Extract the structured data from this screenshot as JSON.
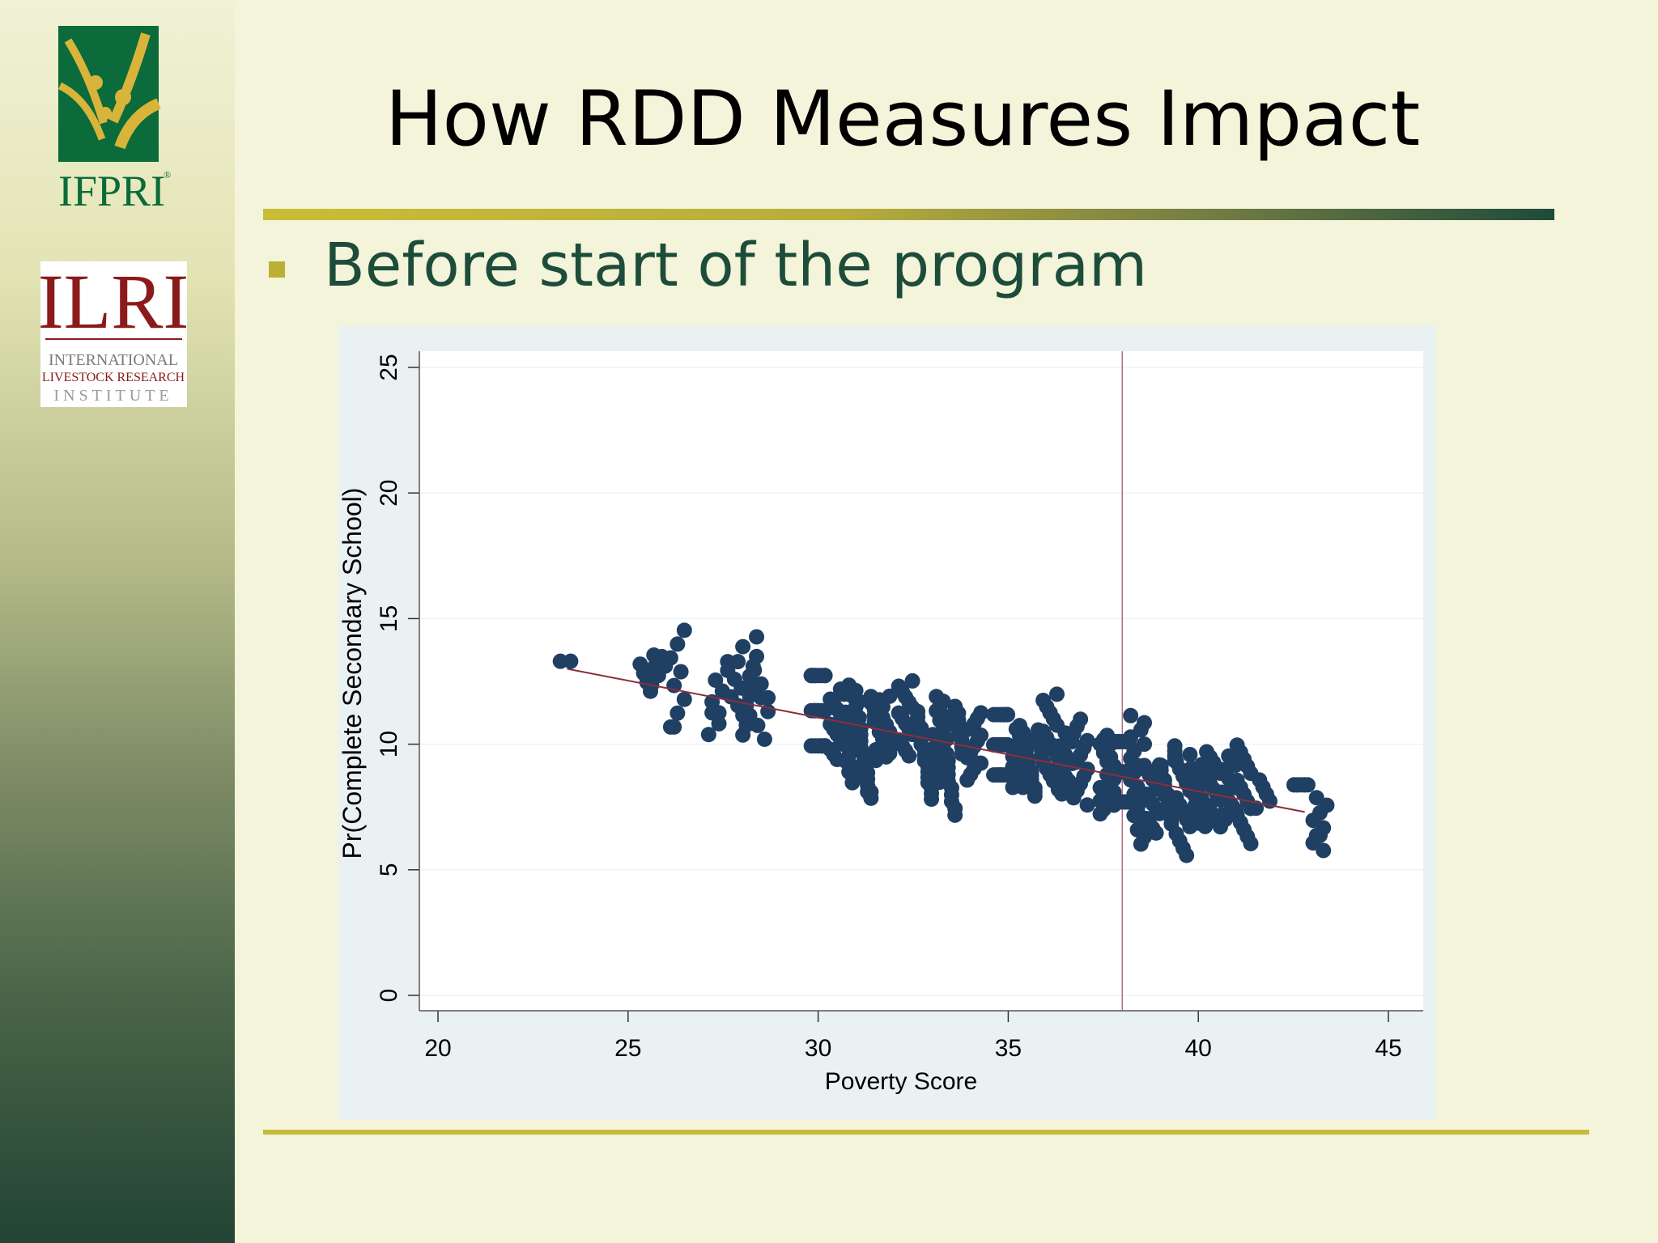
{
  "slide": {
    "title": "How RDD Measures Impact",
    "bullet": "Before start of the program"
  },
  "logos": {
    "ifpri": {
      "text": "IFPRI",
      "registered_mark": "®",
      "colors": {
        "green": "#0b6b3a",
        "gold": "#d8b43a"
      }
    },
    "ilri": {
      "text": "ILRI",
      "line1": "INTERNATIONAL",
      "line2": "LIVESTOCK RESEARCH",
      "line3": "INSTITUTE",
      "colors": {
        "red": "#8b1a1a"
      }
    }
  },
  "colors": {
    "title_rule_start": "#c9bd36",
    "title_rule_end": "#1e4b3a",
    "bullet_text": "#1d4d3a",
    "bullet_marker": "#bbb033",
    "point": "#1f3f63",
    "fit_line": "#8c2d3a",
    "cutoff_line": "#b07080"
  },
  "chart_data": {
    "type": "scatter",
    "xlabel": "Poverty Score",
    "ylabel": "Pr(Complete Secondary School)",
    "xlim": [
      20,
      45
    ],
    "ylim": [
      0,
      25
    ],
    "xticks": [
      "20",
      "25",
      "30",
      "35",
      "40",
      "45"
    ],
    "yticks": [
      "0",
      "5",
      "10",
      "15",
      "20",
      "25"
    ],
    "grid": true,
    "cutoff_x": 38,
    "fit_line": [
      [
        23.4,
        13.0
      ],
      [
        42.8,
        7.3
      ]
    ],
    "point_clusters": [
      {
        "x": 23.4,
        "n": 2,
        "ymin": 13.3,
        "ymax": 14.4
      },
      {
        "x": 25.5,
        "n": 6,
        "ymin": 11.8,
        "ymax": 13.6
      },
      {
        "x": 25.8,
        "n": 5,
        "ymin": 12.0,
        "ymax": 13.5
      },
      {
        "x": 26.3,
        "n": 9,
        "ymin": 10.2,
        "ymax": 14.6
      },
      {
        "x": 27.3,
        "n": 7,
        "ymin": 10.0,
        "ymax": 12.6
      },
      {
        "x": 27.8,
        "n": 7,
        "ymin": 11.5,
        "ymax": 13.6
      },
      {
        "x": 28.2,
        "n": 12,
        "ymin": 10.2,
        "ymax": 14.5
      },
      {
        "x": 28.5,
        "n": 7,
        "ymin": 9.9,
        "ymax": 13.2
      },
      {
        "x": 30.0,
        "n": 22,
        "ymin": 8.7,
        "ymax": 12.9
      },
      {
        "x": 30.5,
        "n": 16,
        "ymin": 9.2,
        "ymax": 12.2
      },
      {
        "x": 30.9,
        "n": 20,
        "ymin": 8.4,
        "ymax": 12.5
      },
      {
        "x": 31.3,
        "n": 18,
        "ymin": 7.8,
        "ymax": 12.1
      },
      {
        "x": 31.7,
        "n": 20,
        "ymin": 9.3,
        "ymax": 12.0
      },
      {
        "x": 32.3,
        "n": 16,
        "ymin": 9.5,
        "ymax": 12.7
      },
      {
        "x": 32.8,
        "n": 18,
        "ymin": 7.8,
        "ymax": 11.5
      },
      {
        "x": 33.2,
        "n": 20,
        "ymin": 8.4,
        "ymax": 12.0
      },
      {
        "x": 33.6,
        "n": 18,
        "ymin": 7.0,
        "ymax": 11.6
      },
      {
        "x": 34.1,
        "n": 14,
        "ymin": 8.4,
        "ymax": 11.3
      },
      {
        "x": 34.8,
        "n": 22,
        "ymin": 7.6,
        "ymax": 11.2
      },
      {
        "x": 35.3,
        "n": 20,
        "ymin": 8.2,
        "ymax": 10.8
      },
      {
        "x": 35.7,
        "n": 18,
        "ymin": 7.8,
        "ymax": 10.6
      },
      {
        "x": 36.1,
        "n": 16,
        "ymin": 8.4,
        "ymax": 12.1
      },
      {
        "x": 36.5,
        "n": 16,
        "ymin": 8.0,
        "ymax": 10.6
      },
      {
        "x": 36.9,
        "n": 14,
        "ymin": 7.4,
        "ymax": 11.1
      },
      {
        "x": 37.6,
        "n": 20,
        "ymin": 7.1,
        "ymax": 10.4
      },
      {
        "x": 38.0,
        "n": 22,
        "ymin": 6.8,
        "ymax": 10.4
      },
      {
        "x": 38.4,
        "n": 20,
        "ymin": 5.8,
        "ymax": 11.2
      },
      {
        "x": 38.8,
        "n": 16,
        "ymin": 6.3,
        "ymax": 9.2
      },
      {
        "x": 39.2,
        "n": 18,
        "ymin": 6.8,
        "ymax": 10.1
      },
      {
        "x": 39.6,
        "n": 16,
        "ymin": 5.3,
        "ymax": 9.6
      },
      {
        "x": 40.0,
        "n": 20,
        "ymin": 6.6,
        "ymax": 9.2
      },
      {
        "x": 40.4,
        "n": 16,
        "ymin": 6.7,
        "ymax": 9.9
      },
      {
        "x": 40.8,
        "n": 16,
        "ymin": 6.9,
        "ymax": 9.6
      },
      {
        "x": 41.2,
        "n": 16,
        "ymin": 6.0,
        "ymax": 10.2
      },
      {
        "x": 41.7,
        "n": 6,
        "ymin": 7.2,
        "ymax": 8.6
      },
      {
        "x": 42.7,
        "n": 8,
        "ymin": 6.1,
        "ymax": 8.5
      },
      {
        "x": 43.2,
        "n": 9,
        "ymin": 5.6,
        "ymax": 8.0
      }
    ]
  }
}
